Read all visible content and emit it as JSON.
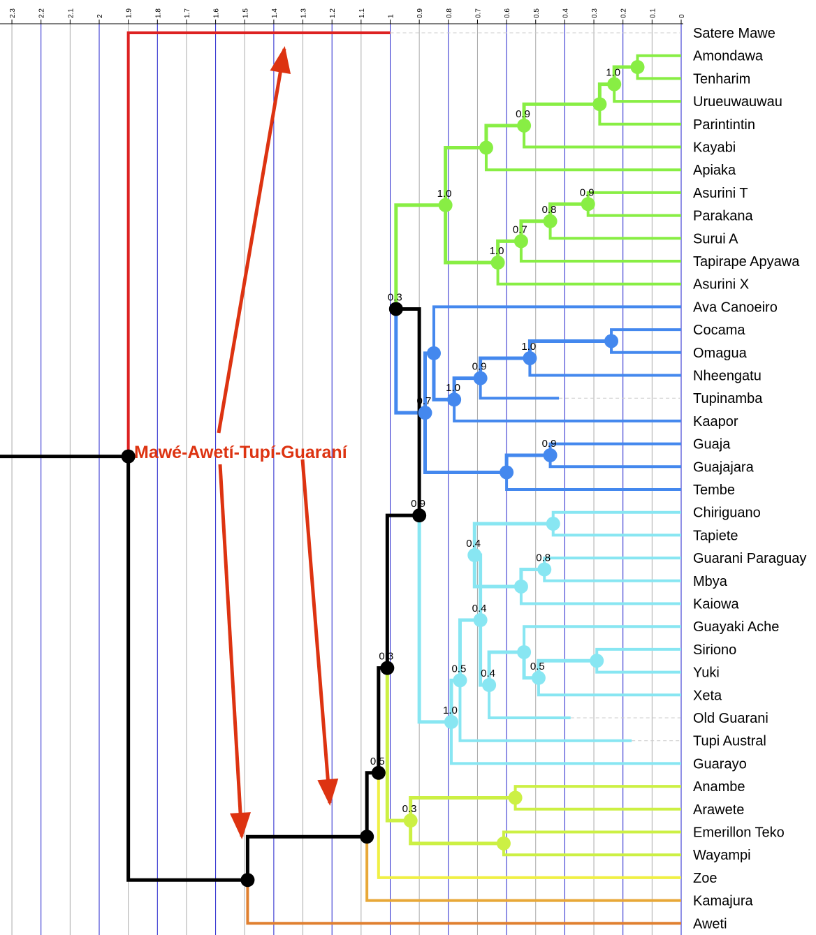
{
  "axis": {
    "ticks": [
      "2.3",
      "2.2",
      "2.1",
      "2",
      "1.9",
      "1.8",
      "1.7",
      "1.6",
      "1.5",
      "1.4",
      "1.3",
      "1.2",
      "1.1",
      "1",
      "0.9",
      "0.8",
      "0.7",
      "0.6",
      "0.5",
      "0.4",
      "0.3",
      "0.2",
      "0.1",
      "0"
    ],
    "range": [
      2.34,
      0.0
    ],
    "grid_colors": {
      "light": "#aaaaaa",
      "major": "#2222cc"
    }
  },
  "callout": {
    "label": "Mawé-Awetí-Tupí-Guaraní",
    "color": "#dd3311"
  },
  "clade_colors": {
    "root": "#000000",
    "satere": "#dd2222",
    "green": "#88ee44",
    "blue": "#4488ee",
    "cyan": "#88e6f2",
    "lime": "#ccf044",
    "zoe": "#f0f044",
    "kamajura": "#e8a838",
    "aweti": "#e08030"
  },
  "taxa": [
    {
      "name": "Satere Mawe",
      "age": 1.0,
      "clade": "satere"
    },
    {
      "name": "Amondawa",
      "age": 0.0,
      "clade": "green"
    },
    {
      "name": "Tenharim",
      "age": 0.0,
      "clade": "green"
    },
    {
      "name": "Urueuwauwau",
      "age": 0.0,
      "clade": "green"
    },
    {
      "name": "Parintintin",
      "age": 0.0,
      "clade": "green"
    },
    {
      "name": "Kayabi",
      "age": 0.0,
      "clade": "green"
    },
    {
      "name": "Apiaka",
      "age": 0.0,
      "clade": "green"
    },
    {
      "name": "Asurini T",
      "age": 0.0,
      "clade": "green"
    },
    {
      "name": "Parakana",
      "age": 0.0,
      "clade": "green"
    },
    {
      "name": "Surui A",
      "age": 0.0,
      "clade": "green"
    },
    {
      "name": "Tapirape Apyawa",
      "age": 0.0,
      "clade": "green"
    },
    {
      "name": "Asurini X",
      "age": 0.0,
      "clade": "green"
    },
    {
      "name": "Ava Canoeiro",
      "age": 0.0,
      "clade": "blue"
    },
    {
      "name": "Cocama",
      "age": 0.0,
      "clade": "blue"
    },
    {
      "name": "Omagua",
      "age": 0.0,
      "clade": "blue"
    },
    {
      "name": "Nheengatu",
      "age": 0.0,
      "clade": "blue"
    },
    {
      "name": "Tupinamba",
      "age": 0.42,
      "clade": "blue"
    },
    {
      "name": "Kaapor",
      "age": 0.0,
      "clade": "blue"
    },
    {
      "name": "Guaja",
      "age": 0.0,
      "clade": "blue"
    },
    {
      "name": "Guajajara",
      "age": 0.0,
      "clade": "blue"
    },
    {
      "name": "Tembe",
      "age": 0.0,
      "clade": "blue"
    },
    {
      "name": "Chiriguano",
      "age": 0.0,
      "clade": "cyan"
    },
    {
      "name": "Tapiete",
      "age": 0.0,
      "clade": "cyan"
    },
    {
      "name": "Guarani Paraguay",
      "age": 0.0,
      "clade": "cyan"
    },
    {
      "name": "Mbya",
      "age": 0.0,
      "clade": "cyan"
    },
    {
      "name": "Kaiowa",
      "age": 0.0,
      "clade": "cyan"
    },
    {
      "name": "Guayaki Ache",
      "age": 0.0,
      "clade": "cyan"
    },
    {
      "name": "Siriono",
      "age": 0.0,
      "clade": "cyan"
    },
    {
      "name": "Yuki",
      "age": 0.0,
      "clade": "cyan"
    },
    {
      "name": "Xeta",
      "age": 0.0,
      "clade": "cyan"
    },
    {
      "name": "Old Guarani",
      "age": 0.38,
      "clade": "cyan"
    },
    {
      "name": "Tupi Austral",
      "age": 0.17,
      "clade": "cyan"
    },
    {
      "name": "Guarayo",
      "age": 0.0,
      "clade": "cyan"
    },
    {
      "name": "Anambe",
      "age": 0.0,
      "clade": "lime"
    },
    {
      "name": "Arawete",
      "age": 0.0,
      "clade": "lime"
    },
    {
      "name": "Emerillon Teko",
      "age": 0.0,
      "clade": "lime"
    },
    {
      "name": "Wayampi",
      "age": 0.0,
      "clade": "lime"
    },
    {
      "name": "Zoe",
      "age": 0.0,
      "clade": "zoe"
    },
    {
      "name": "Kamajura",
      "age": 0.0,
      "clade": "kamajura"
    },
    {
      "name": "Aweti",
      "age": 0.0,
      "clade": "aweti"
    }
  ],
  "nodes": [
    {
      "id": "AmTe",
      "age": 0.15,
      "children": [
        "Amondawa",
        "Tenharim"
      ],
      "clade": "green",
      "support": ""
    },
    {
      "id": "AmTeUr",
      "age": 0.23,
      "children": [
        "AmTe",
        "Urueuwauwau"
      ],
      "clade": "green",
      "support": "1.0"
    },
    {
      "id": "AmTePa",
      "age": 0.28,
      "children": [
        "AmTeUr",
        "Parintintin"
      ],
      "clade": "green",
      "support": ""
    },
    {
      "id": "AmKa",
      "age": 0.54,
      "children": [
        "AmTePa",
        "Kayabi"
      ],
      "clade": "green",
      "support": "0.9"
    },
    {
      "id": "AmAp",
      "age": 0.67,
      "children": [
        "AmKa",
        "Apiaka"
      ],
      "clade": "green",
      "support": ""
    },
    {
      "id": "AsPa",
      "age": 0.32,
      "children": [
        "Asurini T",
        "Parakana"
      ],
      "clade": "green",
      "support": "0.9"
    },
    {
      "id": "AsSu",
      "age": 0.45,
      "children": [
        "AsPa",
        "Surui A"
      ],
      "clade": "green",
      "support": "0.8"
    },
    {
      "id": "AsTa",
      "age": 0.55,
      "children": [
        "AsSu",
        "Tapirape Apyawa"
      ],
      "clade": "green",
      "support": "0.7"
    },
    {
      "id": "AsAx",
      "age": 0.63,
      "children": [
        "AsTa",
        "Asurini X"
      ],
      "clade": "green",
      "support": "1.0"
    },
    {
      "id": "Green",
      "age": 0.81,
      "children": [
        "AmAp",
        "AsAx"
      ],
      "clade": "green",
      "support": "1.0"
    },
    {
      "id": "CoOm",
      "age": 0.24,
      "children": [
        "Cocama",
        "Omagua"
      ],
      "clade": "blue",
      "support": ""
    },
    {
      "id": "CoNh",
      "age": 0.52,
      "children": [
        "CoOm",
        "Nheengatu"
      ],
      "clade": "blue",
      "support": "1.0"
    },
    {
      "id": "CoTu",
      "age": 0.69,
      "children": [
        "CoNh",
        "Tupinamba"
      ],
      "clade": "blue",
      "support": "0.9"
    },
    {
      "id": "CoKa",
      "age": 0.78,
      "children": [
        "CoTu",
        "Kaapor"
      ],
      "clade": "blue",
      "support": "1.0"
    },
    {
      "id": "AvCo",
      "age": 0.85,
      "children": [
        "Ava Canoeiro",
        "CoKa"
      ],
      "clade": "blue",
      "support": ""
    },
    {
      "id": "GuGu",
      "age": 0.45,
      "children": [
        "Guaja",
        "Guajajara"
      ],
      "clade": "blue",
      "support": "0.9"
    },
    {
      "id": "GuTe",
      "age": 0.6,
      "children": [
        "GuGu",
        "Tembe"
      ],
      "clade": "blue",
      "support": ""
    },
    {
      "id": "Blue",
      "age": 0.88,
      "children": [
        "AvCo",
        "GuTe"
      ],
      "clade": "blue",
      "support": "0.7"
    },
    {
      "id": "ChTa",
      "age": 0.44,
      "children": [
        "Chiriguano",
        "Tapiete"
      ],
      "clade": "cyan",
      "support": ""
    },
    {
      "id": "GpMb",
      "age": 0.47,
      "children": [
        "Guarani Paraguay",
        "Mbya"
      ],
      "clade": "cyan",
      "support": "0.8"
    },
    {
      "id": "GpKa",
      "age": 0.55,
      "children": [
        "GpMb",
        "Kaiowa"
      ],
      "clade": "cyan",
      "support": ""
    },
    {
      "id": "ChGp",
      "age": 0.71,
      "children": [
        "ChTa",
        "GpKa"
      ],
      "clade": "cyan",
      "support": "0.4"
    },
    {
      "id": "SiYu",
      "age": 0.29,
      "children": [
        "Siriono",
        "Yuki"
      ],
      "clade": "cyan",
      "support": ""
    },
    {
      "id": "SiXe",
      "age": 0.49,
      "children": [
        "SiYu",
        "Xeta"
      ],
      "clade": "cyan",
      "support": "0.5"
    },
    {
      "id": "GaSi",
      "age": 0.54,
      "children": [
        "Guayaki Ache",
        "SiXe"
      ],
      "clade": "cyan",
      "support": ""
    },
    {
      "id": "GaOg",
      "age": 0.66,
      "children": [
        "GaSi",
        "Old Guarani"
      ],
      "clade": "cyan",
      "support": "0.4"
    },
    {
      "id": "ChGa",
      "age": 0.69,
      "children": [
        "ChGp",
        "GaOg"
      ],
      "clade": "cyan",
      "support": "0.4"
    },
    {
      "id": "ChTu",
      "age": 0.76,
      "children": [
        "ChGa",
        "Tupi Austral"
      ],
      "clade": "cyan",
      "support": "0.5"
    },
    {
      "id": "Cyan",
      "age": 0.79,
      "children": [
        "ChTu",
        "Guarayo"
      ],
      "clade": "cyan",
      "support": "1.0"
    },
    {
      "id": "AnAr",
      "age": 0.57,
      "children": [
        "Anambe",
        "Arawete"
      ],
      "clade": "lime",
      "support": ""
    },
    {
      "id": "EmWa",
      "age": 0.61,
      "children": [
        "Emerillon Teko",
        "Wayampi"
      ],
      "clade": "lime",
      "support": ""
    },
    {
      "id": "Lime",
      "age": 0.93,
      "children": [
        "AnAr",
        "EmWa"
      ],
      "clade": "lime",
      "support": "0.3"
    },
    {
      "id": "GreenBlue",
      "age": 0.98,
      "children": [
        "Green",
        "Blue"
      ],
      "clade": "root",
      "support": "0.3"
    },
    {
      "id": "GBC",
      "age": 0.9,
      "children": [
        "GreenBlue",
        "Cyan"
      ],
      "clade": "root",
      "support": "0.9"
    },
    {
      "id": "GBCL",
      "age": 1.01,
      "children": [
        "GBC",
        "Lime"
      ],
      "clade": "root",
      "support": "0.3"
    },
    {
      "id": "TG",
      "age": 1.04,
      "children": [
        "GBCL",
        "Zoe"
      ],
      "clade": "root",
      "support": "0.5"
    },
    {
      "id": "TGK",
      "age": 1.08,
      "children": [
        "TG",
        "Kamajura"
      ],
      "clade": "root",
      "support": ""
    },
    {
      "id": "AwTG",
      "age": 1.49,
      "children": [
        "TGK",
        "Aweti"
      ],
      "clade": "root",
      "support": ""
    },
    {
      "id": "Root",
      "age": 1.9,
      "children": [
        "Satere Mawe",
        "AwTG"
      ],
      "clade": "root",
      "support": ""
    }
  ]
}
